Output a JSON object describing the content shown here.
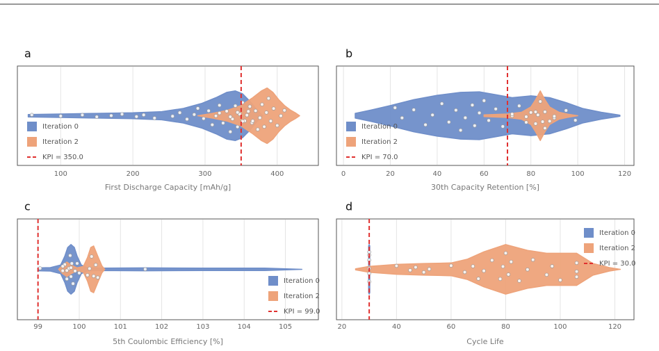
{
  "chart_data": [
    {
      "type": "violin",
      "panel_label": "a",
      "xlabel": "First Discharge Capacity [mAh/g]",
      "xlim": [
        40,
        457
      ],
      "xticks": [
        100,
        200,
        300,
        400
      ],
      "grid": true,
      "kpi": 350,
      "kpi_label": "KPI = 350.0",
      "kpi_color": "#e0302f",
      "legend": "lower left",
      "series": [
        {
          "name": "Iteration 0",
          "color": "#6f8ec9",
          "x": [
            55,
            100,
            150,
            200,
            240,
            270,
            295,
            315,
            330,
            342,
            352,
            362,
            372,
            380
          ],
          "width": [
            0.04,
            0.06,
            0.08,
            0.1,
            0.14,
            0.25,
            0.42,
            0.62,
            0.8,
            0.85,
            0.75,
            0.5,
            0.2,
            0
          ],
          "points": [
            60,
            100,
            130,
            150,
            170,
            185,
            205,
            215,
            230,
            255,
            265,
            275,
            285,
            290,
            298,
            305,
            310,
            315,
            320,
            325,
            330,
            335,
            338,
            342,
            345,
            348,
            352,
            355,
            360,
            365
          ]
        },
        {
          "name": "Iteration 2",
          "color": "#eea37a",
          "x": [
            290,
            310,
            330,
            350,
            365,
            378,
            386,
            394,
            402,
            410,
            418,
            425,
            431
          ],
          "width": [
            0,
            0.08,
            0.18,
            0.35,
            0.6,
            0.85,
            0.95,
            0.8,
            0.55,
            0.35,
            0.2,
            0.1,
            0
          ],
          "points": [
            320,
            335,
            345,
            352,
            358,
            362,
            366,
            370,
            373,
            376,
            379,
            382,
            385,
            388,
            391,
            395,
            400,
            405,
            410
          ]
        }
      ]
    },
    {
      "type": "violin",
      "panel_label": "b",
      "xlabel": "30th Capacity Retention [%]",
      "xlim": [
        -3,
        124
      ],
      "xticks": [
        0,
        20,
        40,
        60,
        80,
        100,
        120
      ],
      "grid": true,
      "kpi": 70,
      "kpi_label": "KPI = 70.0",
      "kpi_color": "#e0302f",
      "legend": "lower left",
      "series": [
        {
          "name": "Iteration 0",
          "color": "#6f8ec9",
          "x": [
            5,
            12,
            20,
            30,
            40,
            50,
            58,
            65,
            72,
            80,
            88,
            95,
            102,
            110,
            118
          ],
          "width": [
            0.08,
            0.2,
            0.35,
            0.55,
            0.7,
            0.8,
            0.82,
            0.72,
            0.62,
            0.68,
            0.62,
            0.45,
            0.25,
            0.12,
            0.02
          ],
          "points": [
            22,
            25,
            30,
            35,
            38,
            42,
            45,
            48,
            50,
            52,
            55,
            56,
            58,
            60,
            62,
            65,
            68,
            72,
            75,
            78,
            82,
            86,
            90,
            95,
            99
          ]
        },
        {
          "name": "Iteration 2",
          "color": "#eea37a",
          "x": [
            60,
            70,
            76,
            80,
            82,
            84,
            86,
            88,
            92,
            96,
            100
          ],
          "width": [
            0.03,
            0.06,
            0.12,
            0.3,
            0.55,
            0.85,
            0.55,
            0.3,
            0.12,
            0.05,
            0
          ],
          "points": [
            72,
            78,
            80,
            82,
            83,
            84,
            85,
            86,
            88,
            90
          ]
        }
      ]
    },
    {
      "type": "violin",
      "panel_label": "c",
      "xlabel": "5th Coulombic Efficiency [%]",
      "xlim": [
        98.5,
        105.8
      ],
      "xticks": [
        99,
        100,
        101,
        102,
        103,
        104,
        105
      ],
      "grid": true,
      "kpi": 99,
      "kpi_label": "KPI = 99.0",
      "kpi_color": "#e0302f",
      "legend": "lower right",
      "series": [
        {
          "name": "Iteration 0",
          "color": "#6f8ec9",
          "x": [
            99.0,
            99.3,
            99.55,
            99.65,
            99.72,
            99.8,
            99.88,
            99.95,
            100.05,
            100.2,
            100.5,
            101.6,
            103,
            104.5,
            105.4
          ],
          "width": [
            0.05,
            0.06,
            0.15,
            0.45,
            0.75,
            0.85,
            0.75,
            0.45,
            0.15,
            0.05,
            0.04,
            0.05,
            0.04,
            0.04,
            0
          ],
          "points": [
            99.05,
            99.6,
            99.65,
            99.7,
            99.75,
            99.78,
            99.8,
            99.82,
            99.85,
            99.9,
            99.95,
            100.0,
            101.6
          ]
        },
        {
          "name": "Iteration 2",
          "color": "#eea37a",
          "x": [
            99.5,
            99.6,
            99.7,
            99.8,
            99.95,
            100.1,
            100.2,
            100.28,
            100.35,
            100.45,
            100.55,
            100.62
          ],
          "width": [
            0,
            0.15,
            0.25,
            0.15,
            0.05,
            0.1,
            0.4,
            0.75,
            0.8,
            0.45,
            0.12,
            0
          ],
          "points": [
            99.6,
            99.7,
            99.8,
            100.2,
            100.25,
            100.3,
            100.35,
            100.4,
            100.45
          ]
        }
      ]
    },
    {
      "type": "violin",
      "panel_label": "d",
      "xlabel": "Cycle Life",
      "xlim": [
        18,
        127
      ],
      "xticks": [
        20,
        40,
        60,
        80,
        100,
        120
      ],
      "grid": true,
      "kpi": 30,
      "kpi_label": "KPI = 30.0",
      "kpi_color": "#e0302f",
      "legend": "upper right",
      "series": [
        {
          "name": "Iteration 0",
          "color": "#6f8ec9",
          "x": [
            29.8,
            30,
            30.2
          ],
          "width": [
            0.8,
            0.85,
            0.8
          ],
          "points": [
            30,
            30,
            30,
            30,
            30,
            30
          ]
        },
        {
          "name": "Iteration 2",
          "color": "#eea37a",
          "x": [
            25,
            30,
            40,
            50,
            60,
            66,
            72,
            80,
            88,
            95,
            100,
            106,
            112,
            118,
            122
          ],
          "width": [
            0.02,
            0.1,
            0.17,
            0.2,
            0.22,
            0.35,
            0.6,
            0.85,
            0.65,
            0.55,
            0.55,
            0.55,
            0.2,
            0.06,
            0
          ],
          "points": [
            40,
            45,
            47,
            50,
            52,
            60,
            65,
            68,
            70,
            72,
            75,
            78,
            79,
            80,
            81,
            82,
            85,
            88,
            90,
            95,
            97,
            100,
            106,
            106,
            106
          ]
        }
      ]
    }
  ]
}
